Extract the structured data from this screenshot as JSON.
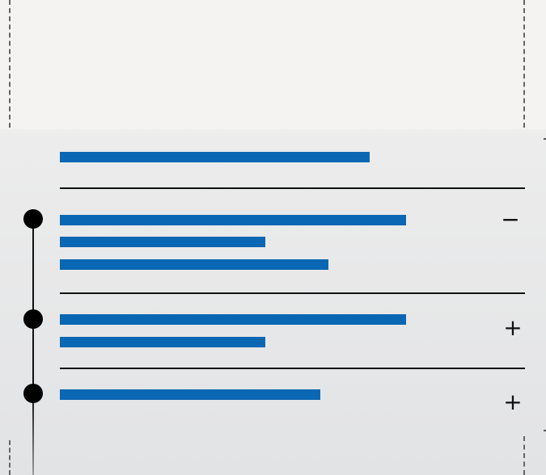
{
  "accordion": {
    "items": [
      {
        "state": "collapsed-header"
      },
      {
        "state": "expanded",
        "toggle": "−",
        "toggle_icon": "minus-icon"
      },
      {
        "state": "collapsed",
        "toggle": "+",
        "toggle_icon": "plus-icon"
      },
      {
        "state": "collapsed",
        "toggle": "+",
        "toggle_icon": "plus-icon"
      }
    ]
  },
  "colors": {
    "accent": "#0a67b3",
    "rule": "#111111",
    "background": "#f3f2f1"
  }
}
